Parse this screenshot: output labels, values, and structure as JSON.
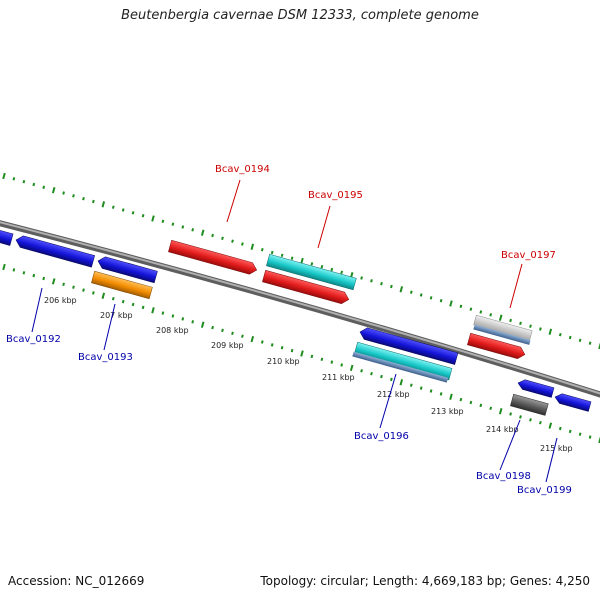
{
  "title": "Beutenbergia cavernae DSM 12333, complete genome",
  "footer": {
    "accession": "Accession: NC_012669",
    "topology": "Topology: circular; Length: 4,669,183 bp; Genes: 4,250"
  },
  "colors": {
    "backbone": "#8a8a8a",
    "ruler": "#1e8c1e",
    "forward_label": "#cc0000",
    "reverse_label": "#0000aa",
    "red": "#e21b1b",
    "blue": "#1414d8",
    "cyan": "#18c8c8",
    "orange": "#f28c00",
    "gray": "#555555"
  },
  "ruler_ticks": [
    "206 kbp",
    "207 kbp",
    "208 kbp",
    "209 kbp",
    "210 kbp",
    "211 kbp",
    "212 kbp",
    "213 kbp",
    "214 kbp",
    "215 kbp"
  ],
  "gene_labels": {
    "forward": [
      "Bcav_0194",
      "Bcav_0195",
      "Bcav_0197"
    ],
    "reverse": [
      "Bcav_0192",
      "Bcav_0193",
      "Bcav_0196",
      "Bcav_0198",
      "Bcav_0199"
    ]
  }
}
